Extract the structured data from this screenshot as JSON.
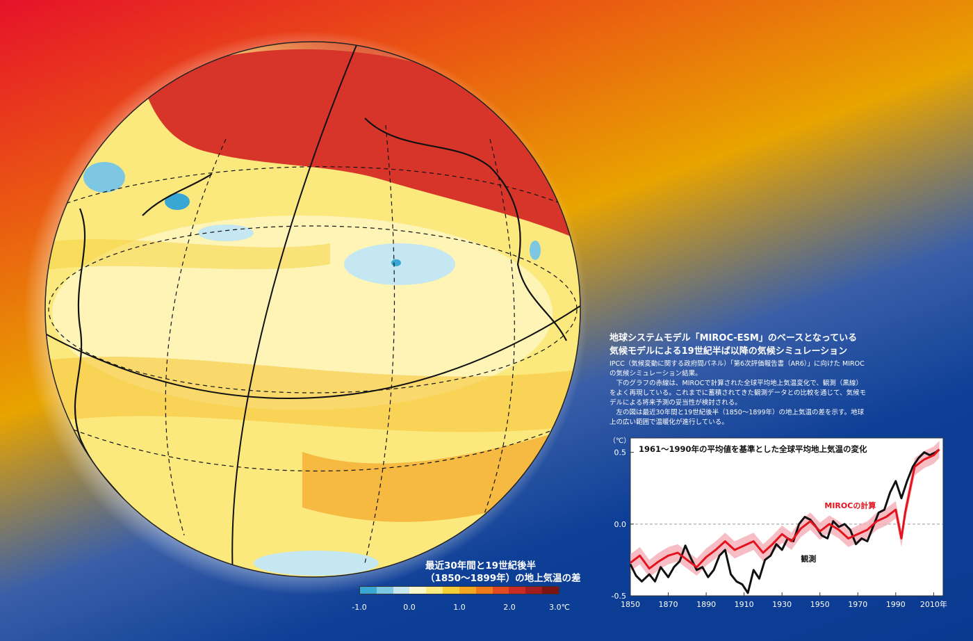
{
  "map": {
    "caption_line1": "最近30年間と19世紀後半",
    "caption_line2": "（1850～1899年）の地上気温の差",
    "colorbar": {
      "ticks": [
        "-1.0",
        "0.0",
        "1.0",
        "2.0",
        "3.0℃"
      ],
      "colors": [
        "#3aa6d4",
        "#7ec7e3",
        "#c4e7f1",
        "#fdf8cc",
        "#fbeb82",
        "#f5cf3a",
        "#f5a623",
        "#ee7a1d",
        "#e24a22",
        "#c92a24",
        "#a51c20",
        "#7c1416"
      ]
    }
  },
  "panel": {
    "title_line1": "地球システムモデル「MIROC-ESM」のベースとなっている",
    "title_line2": "気候モデルによる19世紀半ば以降の気候シミュレーション",
    "body": [
      "IPCC（気候変動に関する政府間パネル）「第6次評価報告書（AR6）」に向けた MIROCの気候シミュレーション結果。",
      "　下のグラフの赤線は、MIROCで計算された全球平均地上気温変化で、観測（黒線）をよく再現している。これまでに蓄積されてきた観測データとの比較を通じて、気候モデルによる将来予測の妥当性が検討される。",
      "　左の図は最近30年間と19世紀後半（1850～1899年）の地上気温の差を示す。地球上の広い範囲で温暖化が進行している。"
    ]
  },
  "chart_data": {
    "type": "line",
    "title": "1961～1990年の平均値を基準とした全球平均地上気温の変化",
    "ylabel": "（℃）",
    "xlim": [
      1850,
      2015
    ],
    "ylim": [
      -0.5,
      0.6
    ],
    "xticks": [
      1850,
      1870,
      1890,
      1910,
      1930,
      1950,
      1970,
      1990,
      2010
    ],
    "xtick_labels": [
      "1850",
      "1870",
      "1890",
      "1910",
      "1930",
      "1950",
      "1970",
      "1990",
      "2010年"
    ],
    "yticks": [
      -0.5,
      0.0,
      0.5
    ],
    "ytick_labels": [
      "-0.5",
      "0.0",
      "0.5"
    ],
    "zero_line": "dashed",
    "series": [
      {
        "name": "MIROCの計算",
        "color": "#e3121c",
        "band_color": "#f4aeb5",
        "x": [
          1850,
          1855,
          1860,
          1865,
          1870,
          1875,
          1880,
          1885,
          1890,
          1895,
          1900,
          1905,
          1910,
          1915,
          1920,
          1925,
          1930,
          1935,
          1940,
          1945,
          1950,
          1955,
          1960,
          1965,
          1970,
          1975,
          1980,
          1985,
          1990,
          1993,
          1995,
          2000,
          2005,
          2010,
          2013
        ],
        "values": [
          -0.27,
          -0.22,
          -0.31,
          -0.26,
          -0.22,
          -0.2,
          -0.25,
          -0.3,
          -0.23,
          -0.18,
          -0.12,
          -0.18,
          -0.15,
          -0.12,
          -0.2,
          -0.14,
          -0.07,
          -0.12,
          -0.03,
          0.02,
          -0.05,
          0.0,
          -0.04,
          -0.1,
          -0.07,
          -0.04,
          0.02,
          0.05,
          0.1,
          -0.1,
          0.08,
          0.4,
          0.45,
          0.48,
          0.52
        ]
      },
      {
        "name": "観測",
        "color": "#111111",
        "x": [
          1850,
          1853,
          1856,
          1860,
          1863,
          1866,
          1870,
          1873,
          1876,
          1879,
          1882,
          1885,
          1888,
          1891,
          1894,
          1897,
          1900,
          1903,
          1906,
          1909,
          1912,
          1915,
          1918,
          1921,
          1924,
          1927,
          1930,
          1933,
          1936,
          1939,
          1942,
          1945,
          1948,
          1951,
          1954,
          1957,
          1960,
          1963,
          1966,
          1969,
          1972,
          1975,
          1978,
          1981,
          1984,
          1987,
          1990,
          1993,
          1996,
          1999,
          2002,
          2005,
          2008,
          2011,
          2013
        ],
        "values": [
          -0.28,
          -0.36,
          -0.4,
          -0.35,
          -0.4,
          -0.3,
          -0.37,
          -0.3,
          -0.26,
          -0.15,
          -0.24,
          -0.32,
          -0.3,
          -0.37,
          -0.32,
          -0.22,
          -0.18,
          -0.35,
          -0.4,
          -0.42,
          -0.48,
          -0.32,
          -0.38,
          -0.25,
          -0.22,
          -0.14,
          -0.18,
          -0.1,
          -0.12,
          0.0,
          0.05,
          0.03,
          -0.02,
          -0.08,
          -0.1,
          0.02,
          -0.02,
          0.0,
          -0.04,
          -0.14,
          -0.1,
          -0.12,
          -0.02,
          0.08,
          0.1,
          0.22,
          0.3,
          0.18,
          0.3,
          0.4,
          0.46,
          0.5,
          0.48,
          0.5,
          0.52
        ]
      }
    ],
    "annotations": [
      {
        "text": "MIROCの計算",
        "color": "#e3121c",
        "x": 1966,
        "y": 0.11
      },
      {
        "text": "観測",
        "color": "#111111",
        "x": 1944,
        "y": -0.26
      }
    ]
  }
}
